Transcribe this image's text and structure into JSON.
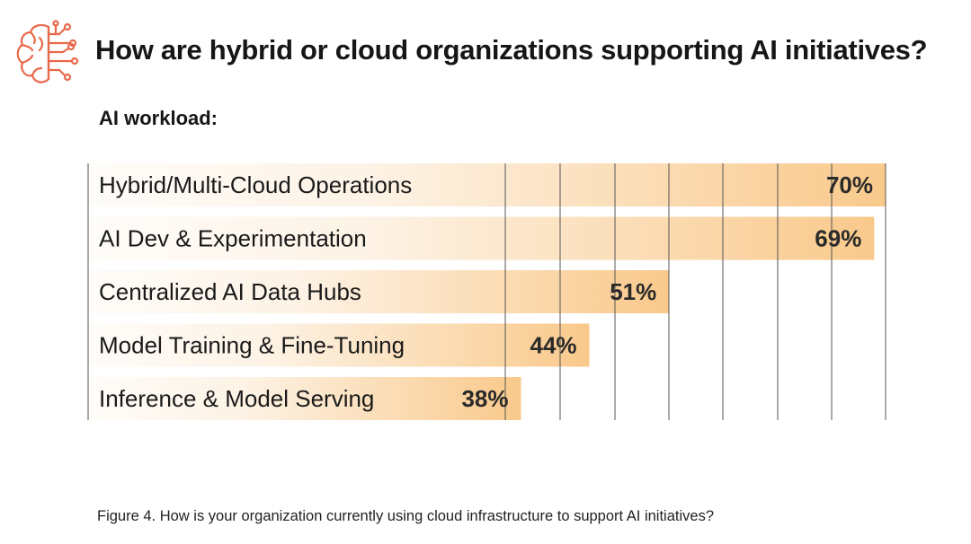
{
  "title": "How are hybrid or cloud organizations supporting AI initiatives?",
  "subtitle": "AI workload:",
  "caption": "Figure 4. How is your organization currently using cloud infrastructure to support AI initiatives?",
  "icon": "brain-circuit-icon",
  "colors": {
    "accent": "#e8684a",
    "bar_start": "#fdf3e6",
    "bar_end": "#f9c98b",
    "grid": "#555555",
    "text": "#1a1a1a"
  },
  "chart_data": {
    "type": "bar",
    "orientation": "horizontal",
    "categories": [
      "Hybrid/Multi-Cloud Operations",
      "AI Dev & Experimentation",
      "Centralized AI Data Hubs",
      "Model Training & Fine-Tuning",
      "Inference & Model Serving"
    ],
    "values": [
      70,
      69,
      51,
      44,
      38
    ],
    "value_labels": [
      "70%",
      "69%",
      "51%",
      "44%",
      "38%"
    ],
    "unit": "%",
    "title": "AI workload:",
    "xlabel": "",
    "ylabel": "",
    "xlim": [
      0,
      70
    ],
    "grid": true
  }
}
